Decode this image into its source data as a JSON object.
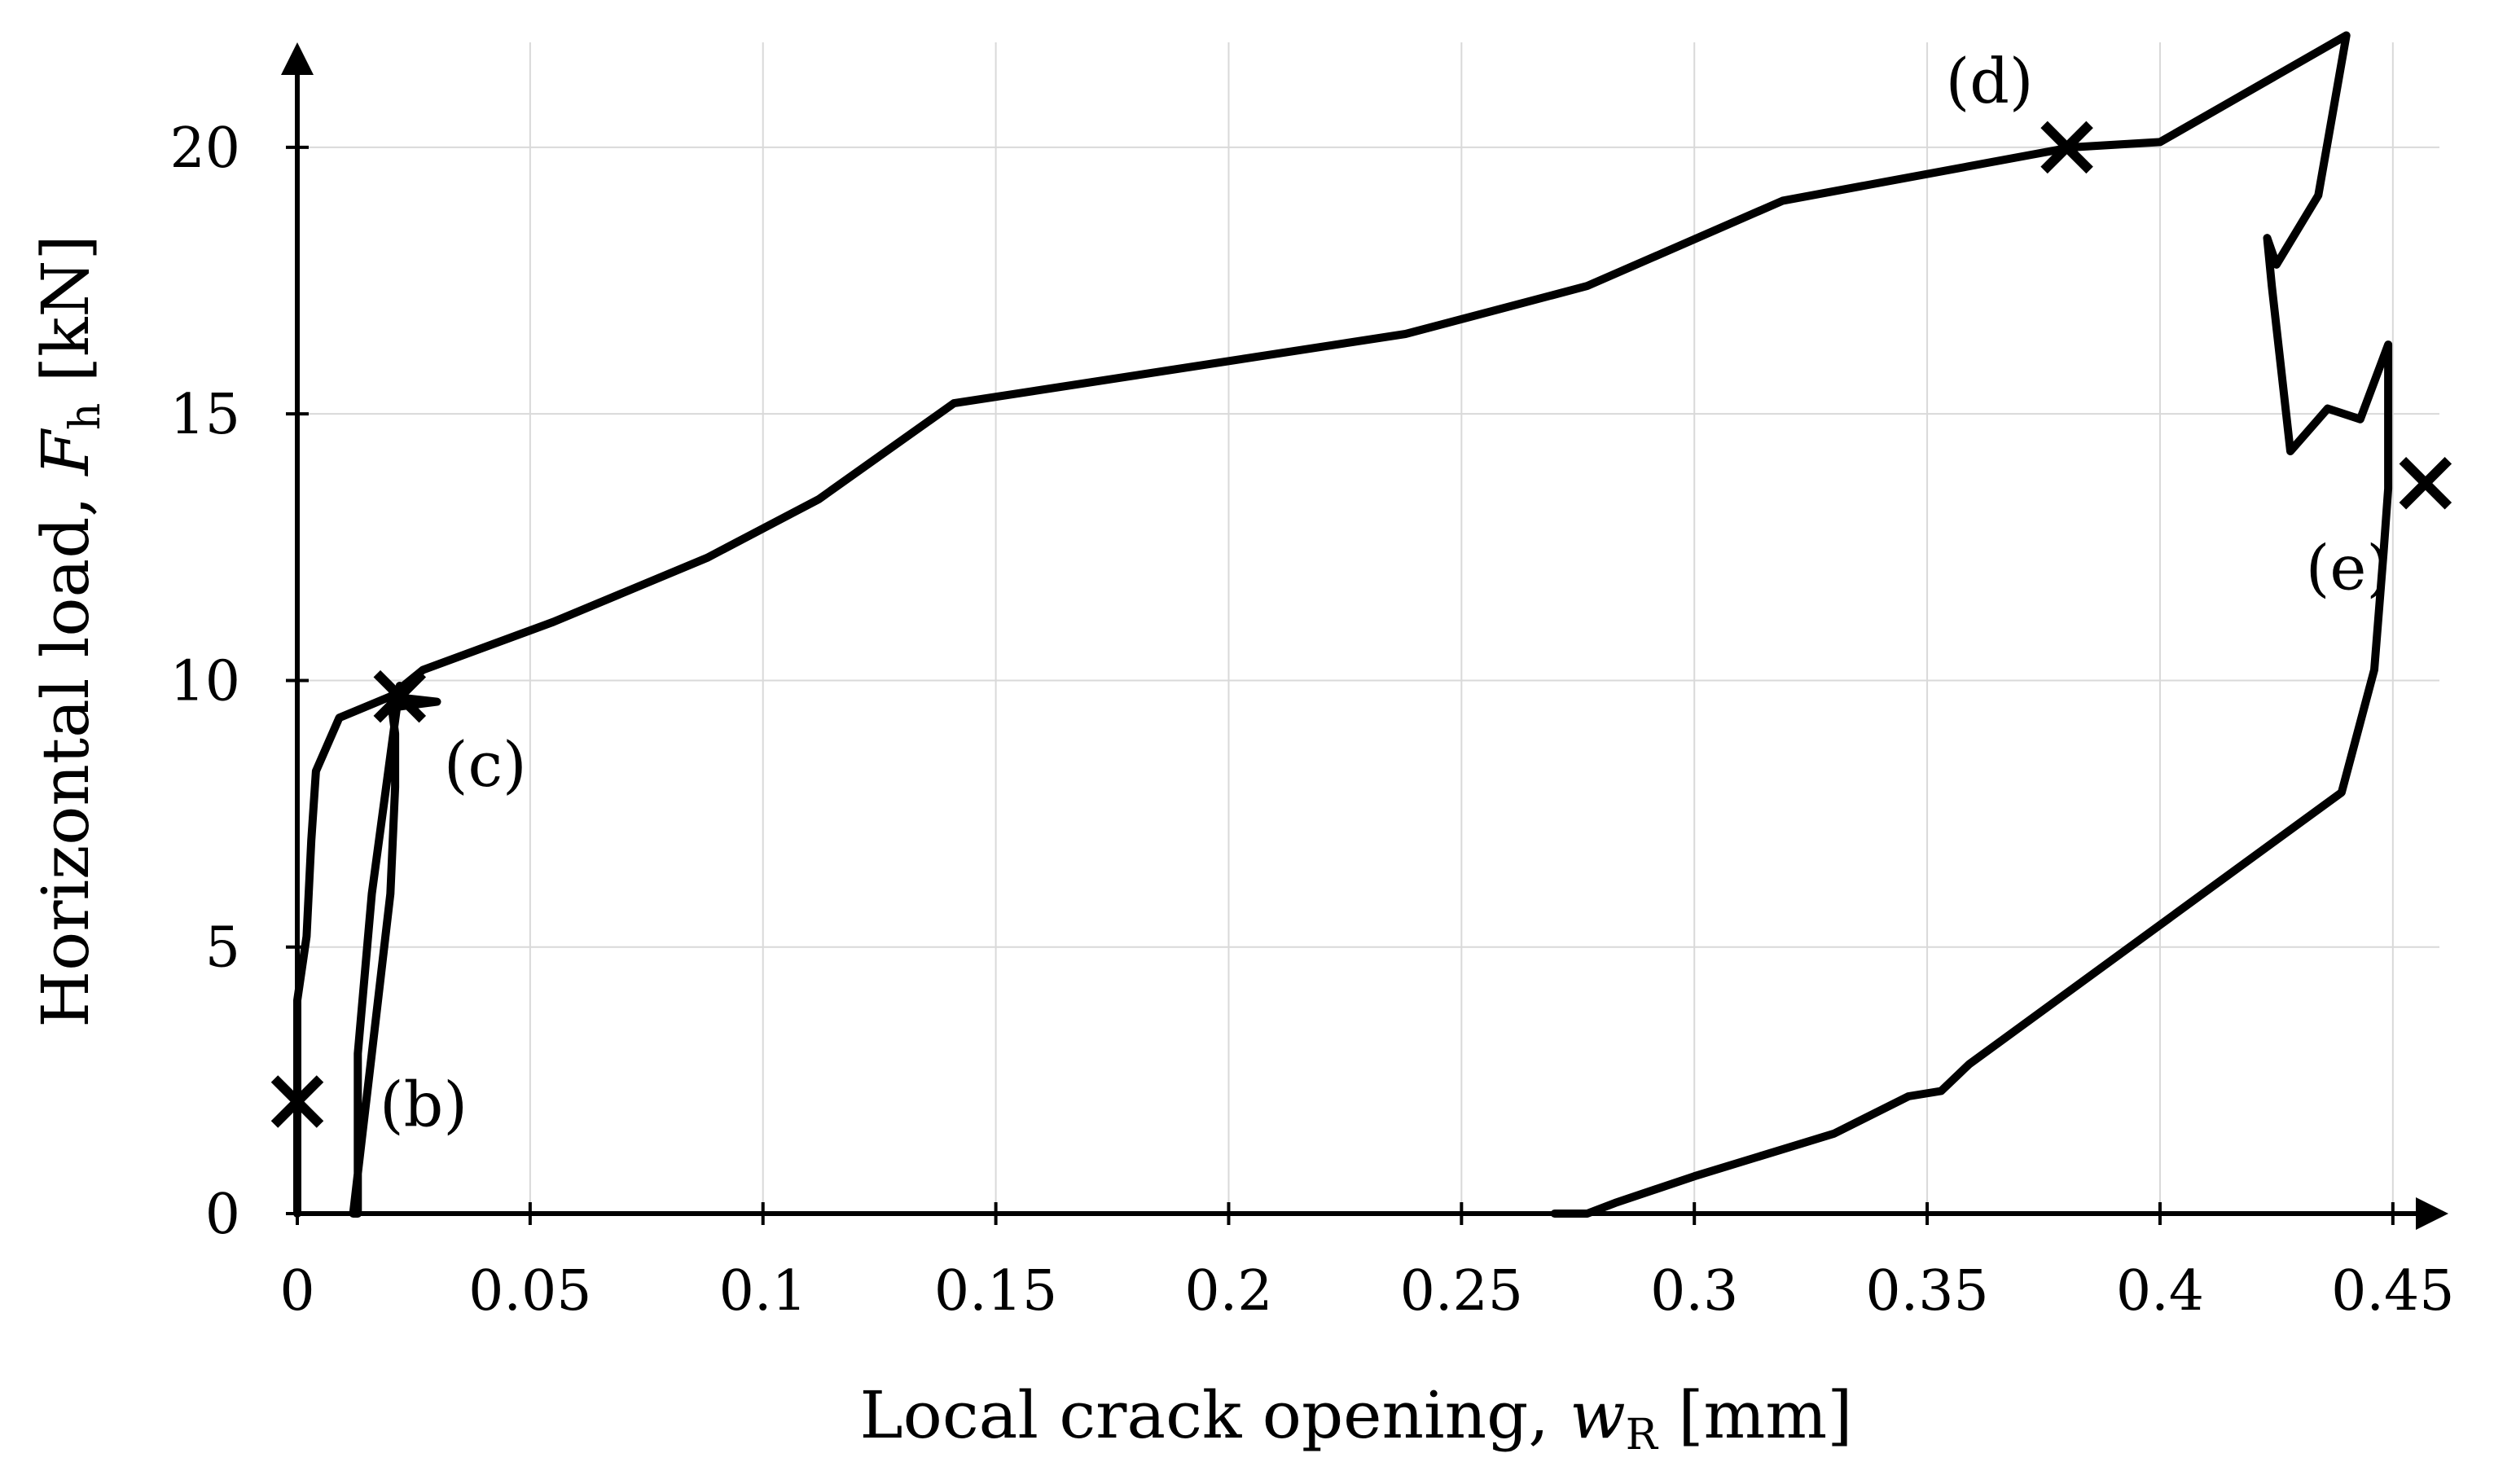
{
  "chart_data": {
    "type": "line",
    "xlabel": "Local crack opening,",
    "xlabel_var": "w",
    "xlabel_sub": "R",
    "xlabel_unit": "[mm]",
    "ylabel": "Horizontal load,",
    "ylabel_var": "F",
    "ylabel_sub": "h",
    "ylabel_unit": "[kN]",
    "xlim": [
      0,
      0.46
    ],
    "ylim": [
      0,
      22
    ],
    "x_ticks": [
      0,
      0.05,
      0.1,
      0.15,
      0.2,
      0.25,
      0.3,
      0.35,
      0.4,
      0.45
    ],
    "x_tick_labels": [
      "0",
      "0.05",
      "0.1",
      "0.15",
      "0.2",
      "0.25",
      "0.3",
      "0.35",
      "0.4",
      "0.45"
    ],
    "y_ticks": [
      0,
      5,
      10,
      15,
      20
    ],
    "y_tick_labels": [
      "0",
      "5",
      "10",
      "15",
      "20"
    ],
    "grid": true,
    "series": [
      {
        "color": "#000000",
        "points": [
          [
            0.0,
            0.0
          ],
          [
            0.0,
            2.0
          ],
          [
            0.0,
            4.0
          ],
          [
            0.002,
            5.2
          ],
          [
            0.003,
            7.0
          ],
          [
            0.004,
            8.3
          ],
          [
            0.009,
            9.3
          ],
          [
            0.02,
            9.7
          ],
          [
            0.027,
            10.2
          ],
          [
            0.055,
            11.1
          ],
          [
            0.088,
            12.3
          ],
          [
            0.112,
            13.4
          ],
          [
            0.141,
            15.2
          ],
          [
            0.238,
            16.5
          ],
          [
            0.277,
            17.4
          ],
          [
            0.319,
            19.0
          ],
          [
            0.381,
            20.0
          ],
          [
            0.4,
            20.1
          ],
          [
            0.44,
            22.1
          ],
          [
            0.434,
            19.1
          ],
          [
            0.425,
            17.8
          ],
          [
            0.423,
            18.3
          ],
          [
            0.424,
            17.4
          ],
          [
            0.428,
            14.3
          ],
          [
            0.436,
            15.1
          ],
          [
            0.443,
            14.9
          ],
          [
            0.449,
            16.3
          ],
          [
            0.449,
            13.6
          ],
          [
            0.448,
            12.4
          ],
          [
            0.446,
            10.2
          ],
          [
            0.439,
            7.9
          ],
          [
            0.359,
            2.8
          ],
          [
            0.353,
            2.3
          ],
          [
            0.346,
            2.2
          ],
          [
            0.33,
            1.5
          ],
          [
            0.3,
            0.7
          ],
          [
            0.283,
            0.2
          ],
          [
            0.277,
            0.0
          ],
          [
            0.27,
            0.0
          ]
        ]
      },
      {
        "color": "#000000",
        "points": [
          [
            0.022,
            9.9
          ],
          [
            0.016,
            6.0
          ],
          [
            0.013,
            3.0
          ],
          [
            0.013,
            0.0
          ],
          [
            0.012,
            0.0
          ],
          [
            0.014,
            1.5
          ],
          [
            0.016,
            3.0
          ],
          [
            0.02,
            6.0
          ],
          [
            0.021,
            8.0
          ],
          [
            0.021,
            9.0
          ],
          [
            0.02,
            9.7
          ],
          [
            0.03,
            9.6
          ],
          [
            0.021,
            9.5
          ]
        ]
      }
    ],
    "annotations": [
      {
        "label": "(b)",
        "x": 0.0,
        "y": 2.1
      },
      {
        "label": "(c)",
        "x": 0.022,
        "y": 9.7
      },
      {
        "label": "(d)",
        "x": 0.38,
        "y": 20.0
      },
      {
        "label": "(e)",
        "x": 0.457,
        "y": 13.7
      }
    ]
  }
}
